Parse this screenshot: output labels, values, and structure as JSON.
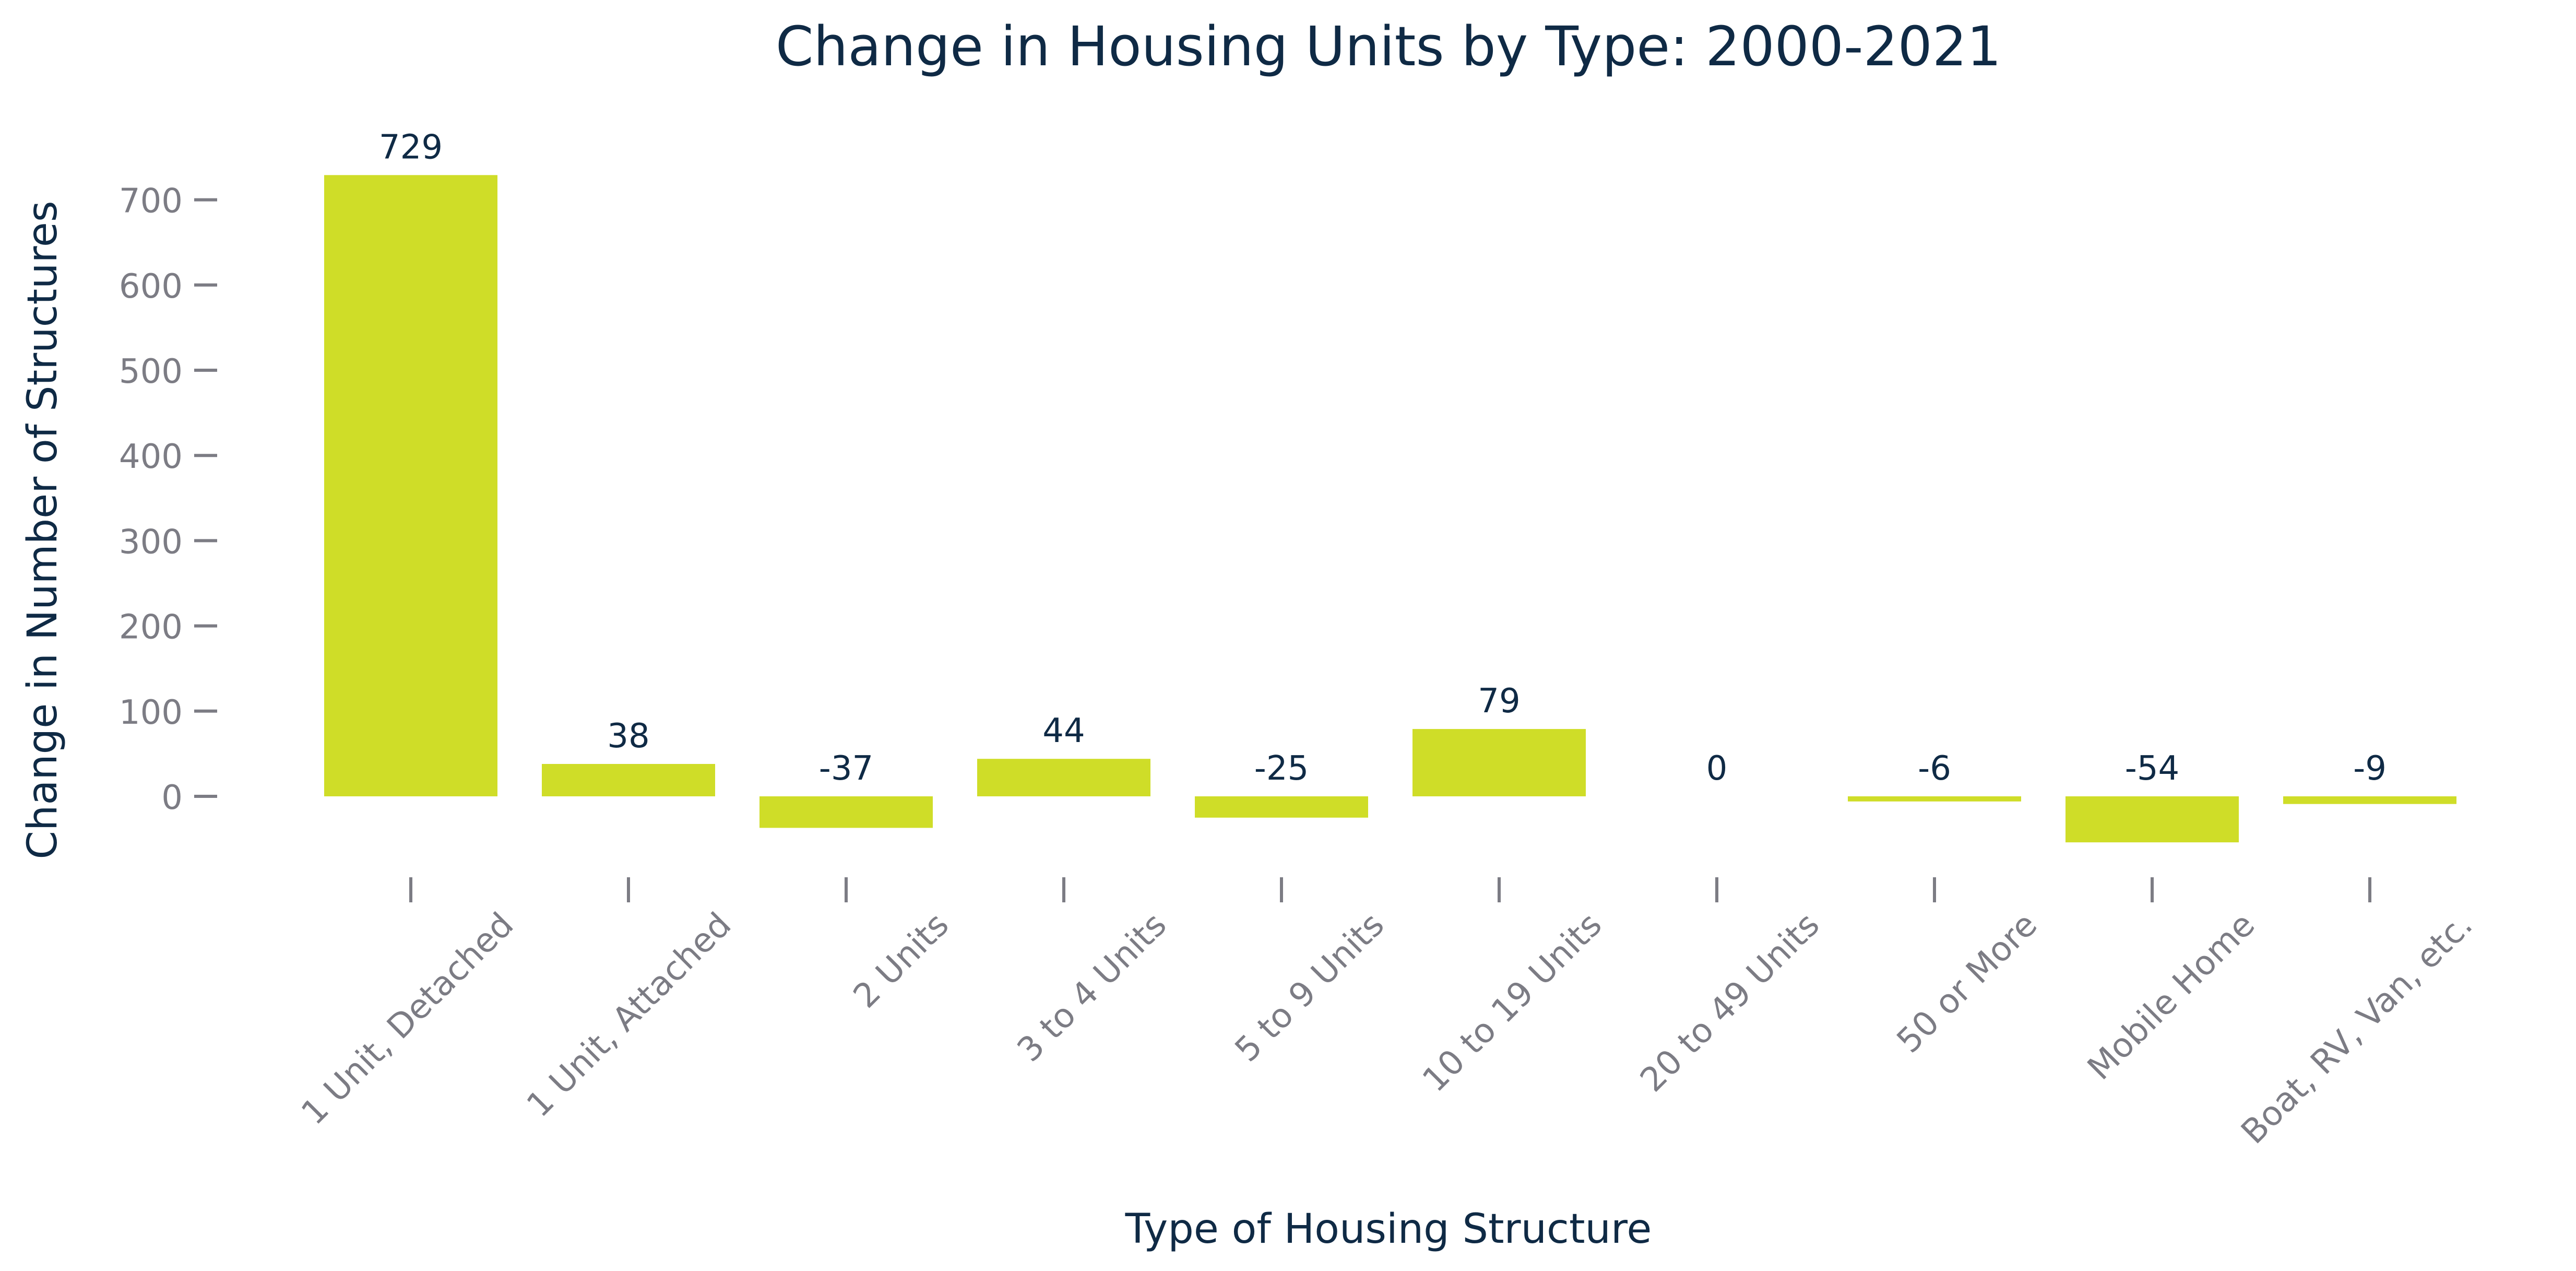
{
  "chart_data": {
    "type": "bar",
    "title": "Change in Housing Units by Type: 2000-2021",
    "xlabel": "Type of Housing Structure",
    "ylabel": "Change in Number of Structures",
    "categories": [
      "1 Unit, Detached",
      "1 Unit, Attached",
      "2 Units",
      "3 to 4 Units",
      "5 to 9 Units",
      "10 to 19 Units",
      "20 to 49 Units",
      "50 or More",
      "Mobile Home",
      "Boat, RV, Van, etc."
    ],
    "values": [
      729,
      38,
      -37,
      44,
      -25,
      79,
      0,
      -6,
      -54,
      -9
    ],
    "data_labels": [
      "729",
      "38",
      "-37",
      "44",
      "-25",
      "79",
      "0",
      "-6",
      "-54",
      "-9"
    ],
    "yticks": [
      0,
      100,
      200,
      300,
      400,
      500,
      600,
      700
    ],
    "ytick_labels": [
      "0",
      "100",
      "200",
      "300",
      "400",
      "500",
      "600",
      "700"
    ],
    "ylim": [
      -110,
      770
    ],
    "grid": false,
    "legend": "none",
    "colors": {
      "bar": "#cfdd28",
      "title": "#0f2a45",
      "ticks": "#7c7c84"
    }
  }
}
